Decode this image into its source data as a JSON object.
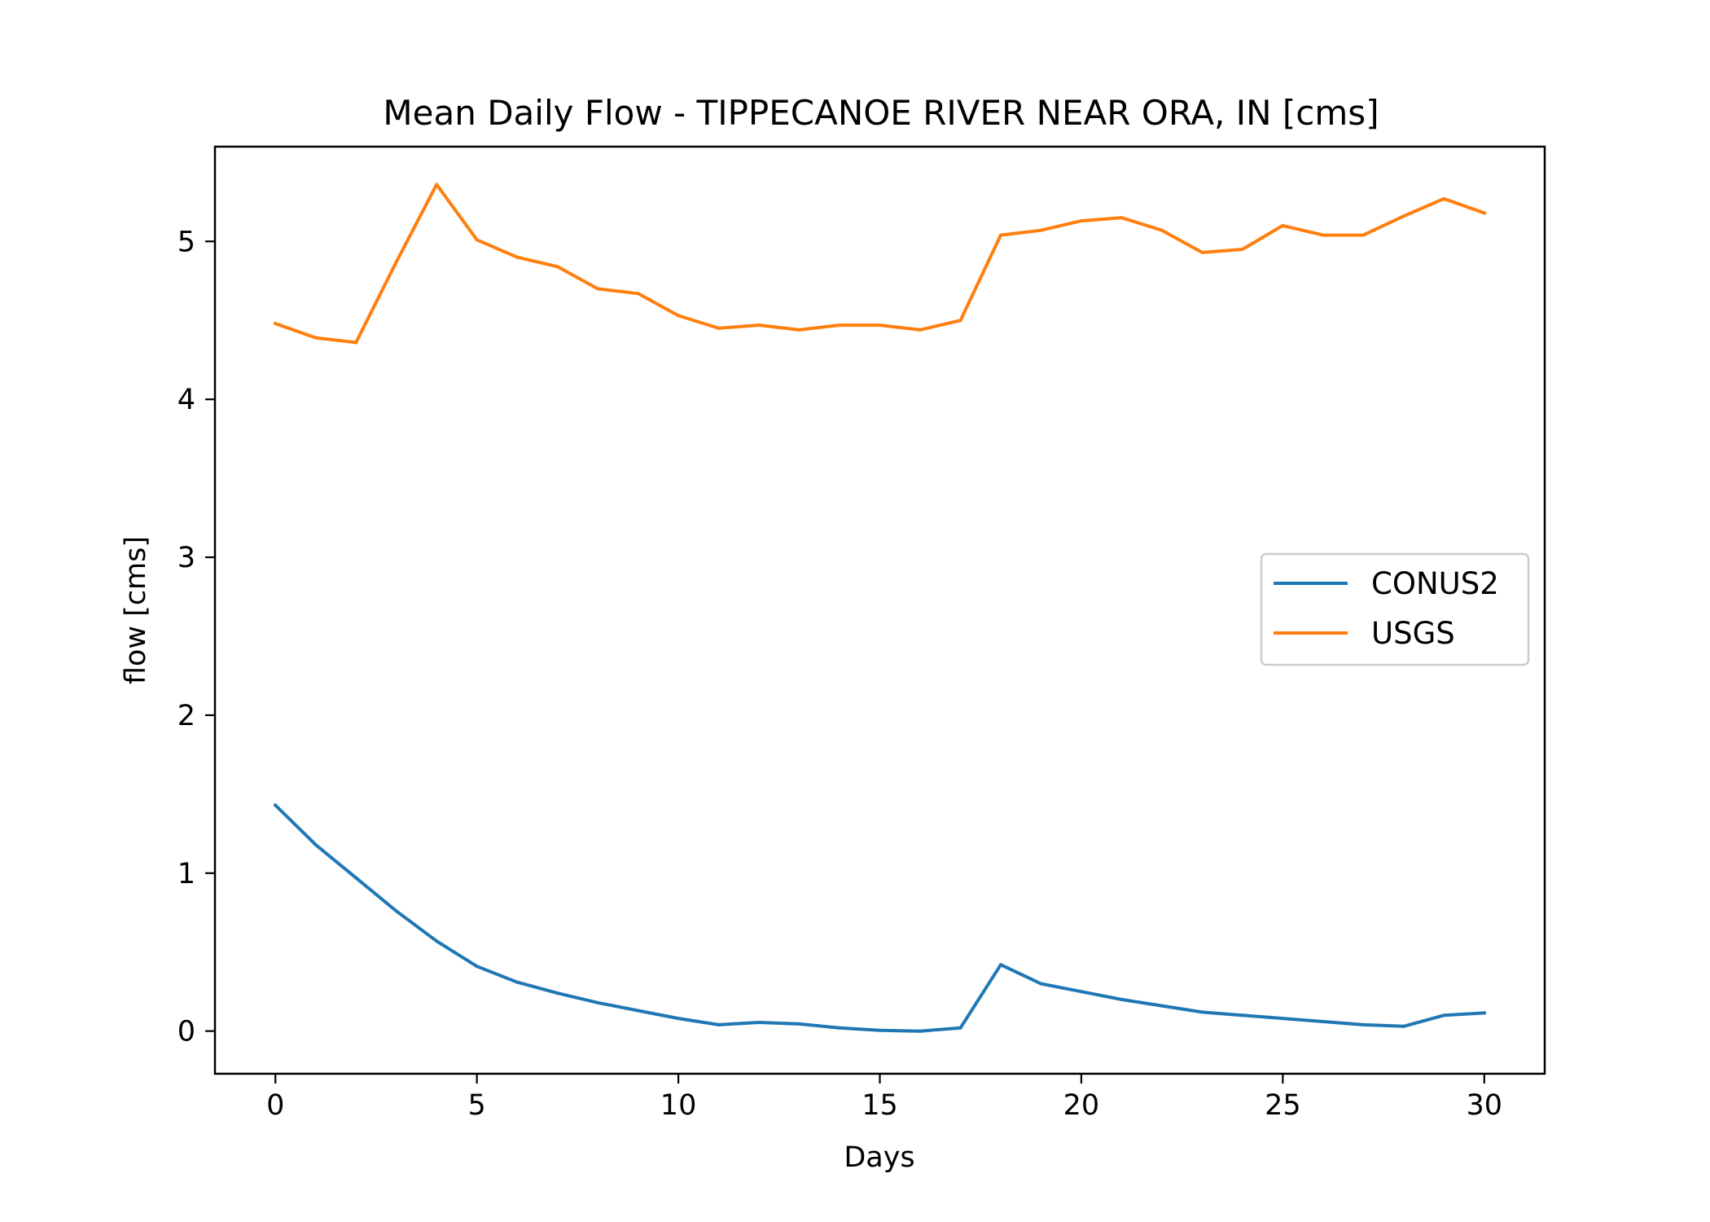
{
  "chart_data": {
    "type": "line",
    "title": "Mean Daily Flow - TIPPECANOE RIVER NEAR ORA, IN [cms]",
    "xlabel": "Days",
    "ylabel": "flow [cms]",
    "xlim": [
      -1.5,
      31.5
    ],
    "ylim": [
      -0.27,
      5.6
    ],
    "xticks": [
      0,
      5,
      10,
      15,
      20,
      25,
      30
    ],
    "yticks": [
      0,
      1,
      2,
      3,
      4,
      5
    ],
    "grid": false,
    "legend_position": "center-right",
    "x": [
      0,
      1,
      2,
      3,
      4,
      5,
      6,
      7,
      8,
      9,
      10,
      11,
      12,
      13,
      14,
      15,
      16,
      17,
      18,
      19,
      20,
      21,
      22,
      23,
      24,
      25,
      26,
      27,
      28,
      29,
      30
    ],
    "series": [
      {
        "name": "CONUS2",
        "color": "#1f77b4",
        "values": [
          1.43,
          1.18,
          0.97,
          0.76,
          0.57,
          0.41,
          0.31,
          0.24,
          0.18,
          0.13,
          0.08,
          0.04,
          0.055,
          0.045,
          0.02,
          0.005,
          0.0,
          0.02,
          0.42,
          0.3,
          0.25,
          0.2,
          0.16,
          0.12,
          0.1,
          0.08,
          0.06,
          0.04,
          0.03,
          0.1,
          0.115
        ]
      },
      {
        "name": "USGS",
        "color": "#ff7f0e",
        "values": [
          4.48,
          4.39,
          4.36,
          4.87,
          5.36,
          5.01,
          4.9,
          4.84,
          4.7,
          4.67,
          4.53,
          4.45,
          4.47,
          4.44,
          4.47,
          4.47,
          4.44,
          4.5,
          5.04,
          5.07,
          5.13,
          5.15,
          5.07,
          4.93,
          4.95,
          5.1,
          5.04,
          5.04,
          5.16,
          5.27,
          5.18
        ]
      }
    ]
  }
}
